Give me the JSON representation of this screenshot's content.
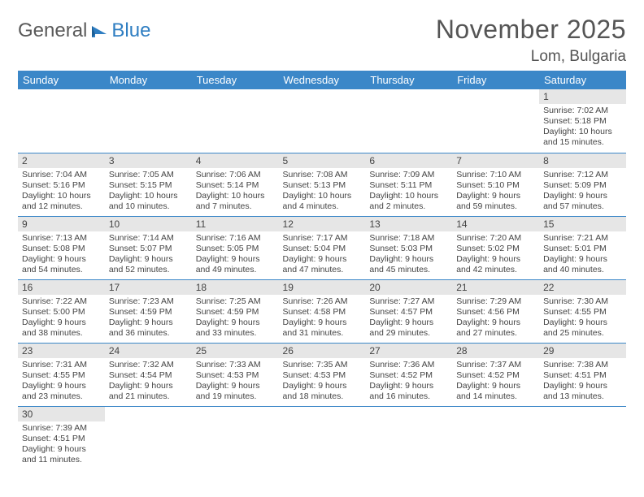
{
  "logo": {
    "general": "General",
    "blue": "Blue"
  },
  "title": "November 2025",
  "location": "Lom, Bulgaria",
  "colors": {
    "header_bg": "#3b87c8",
    "header_text": "#ffffff",
    "daynum_bg": "#e6e6e6",
    "border": "#3b87c8",
    "text": "#444444",
    "logo_gray": "#5a5a5a",
    "logo_blue": "#2f7ec2"
  },
  "day_headers": [
    "Sunday",
    "Monday",
    "Tuesday",
    "Wednesday",
    "Thursday",
    "Friday",
    "Saturday"
  ],
  "weeks": [
    [
      null,
      null,
      null,
      null,
      null,
      null,
      {
        "n": "1",
        "sr": "Sunrise: 7:02 AM",
        "ss": "Sunset: 5:18 PM",
        "dl": "Daylight: 10 hours and 15 minutes."
      }
    ],
    [
      {
        "n": "2",
        "sr": "Sunrise: 7:04 AM",
        "ss": "Sunset: 5:16 PM",
        "dl": "Daylight: 10 hours and 12 minutes."
      },
      {
        "n": "3",
        "sr": "Sunrise: 7:05 AM",
        "ss": "Sunset: 5:15 PM",
        "dl": "Daylight: 10 hours and 10 minutes."
      },
      {
        "n": "4",
        "sr": "Sunrise: 7:06 AM",
        "ss": "Sunset: 5:14 PM",
        "dl": "Daylight: 10 hours and 7 minutes."
      },
      {
        "n": "5",
        "sr": "Sunrise: 7:08 AM",
        "ss": "Sunset: 5:13 PM",
        "dl": "Daylight: 10 hours and 4 minutes."
      },
      {
        "n": "6",
        "sr": "Sunrise: 7:09 AM",
        "ss": "Sunset: 5:11 PM",
        "dl": "Daylight: 10 hours and 2 minutes."
      },
      {
        "n": "7",
        "sr": "Sunrise: 7:10 AM",
        "ss": "Sunset: 5:10 PM",
        "dl": "Daylight: 9 hours and 59 minutes."
      },
      {
        "n": "8",
        "sr": "Sunrise: 7:12 AM",
        "ss": "Sunset: 5:09 PM",
        "dl": "Daylight: 9 hours and 57 minutes."
      }
    ],
    [
      {
        "n": "9",
        "sr": "Sunrise: 7:13 AM",
        "ss": "Sunset: 5:08 PM",
        "dl": "Daylight: 9 hours and 54 minutes."
      },
      {
        "n": "10",
        "sr": "Sunrise: 7:14 AM",
        "ss": "Sunset: 5:07 PM",
        "dl": "Daylight: 9 hours and 52 minutes."
      },
      {
        "n": "11",
        "sr": "Sunrise: 7:16 AM",
        "ss": "Sunset: 5:05 PM",
        "dl": "Daylight: 9 hours and 49 minutes."
      },
      {
        "n": "12",
        "sr": "Sunrise: 7:17 AM",
        "ss": "Sunset: 5:04 PM",
        "dl": "Daylight: 9 hours and 47 minutes."
      },
      {
        "n": "13",
        "sr": "Sunrise: 7:18 AM",
        "ss": "Sunset: 5:03 PM",
        "dl": "Daylight: 9 hours and 45 minutes."
      },
      {
        "n": "14",
        "sr": "Sunrise: 7:20 AM",
        "ss": "Sunset: 5:02 PM",
        "dl": "Daylight: 9 hours and 42 minutes."
      },
      {
        "n": "15",
        "sr": "Sunrise: 7:21 AM",
        "ss": "Sunset: 5:01 PM",
        "dl": "Daylight: 9 hours and 40 minutes."
      }
    ],
    [
      {
        "n": "16",
        "sr": "Sunrise: 7:22 AM",
        "ss": "Sunset: 5:00 PM",
        "dl": "Daylight: 9 hours and 38 minutes."
      },
      {
        "n": "17",
        "sr": "Sunrise: 7:23 AM",
        "ss": "Sunset: 4:59 PM",
        "dl": "Daylight: 9 hours and 36 minutes."
      },
      {
        "n": "18",
        "sr": "Sunrise: 7:25 AM",
        "ss": "Sunset: 4:59 PM",
        "dl": "Daylight: 9 hours and 33 minutes."
      },
      {
        "n": "19",
        "sr": "Sunrise: 7:26 AM",
        "ss": "Sunset: 4:58 PM",
        "dl": "Daylight: 9 hours and 31 minutes."
      },
      {
        "n": "20",
        "sr": "Sunrise: 7:27 AM",
        "ss": "Sunset: 4:57 PM",
        "dl": "Daylight: 9 hours and 29 minutes."
      },
      {
        "n": "21",
        "sr": "Sunrise: 7:29 AM",
        "ss": "Sunset: 4:56 PM",
        "dl": "Daylight: 9 hours and 27 minutes."
      },
      {
        "n": "22",
        "sr": "Sunrise: 7:30 AM",
        "ss": "Sunset: 4:55 PM",
        "dl": "Daylight: 9 hours and 25 minutes."
      }
    ],
    [
      {
        "n": "23",
        "sr": "Sunrise: 7:31 AM",
        "ss": "Sunset: 4:55 PM",
        "dl": "Daylight: 9 hours and 23 minutes."
      },
      {
        "n": "24",
        "sr": "Sunrise: 7:32 AM",
        "ss": "Sunset: 4:54 PM",
        "dl": "Daylight: 9 hours and 21 minutes."
      },
      {
        "n": "25",
        "sr": "Sunrise: 7:33 AM",
        "ss": "Sunset: 4:53 PM",
        "dl": "Daylight: 9 hours and 19 minutes."
      },
      {
        "n": "26",
        "sr": "Sunrise: 7:35 AM",
        "ss": "Sunset: 4:53 PM",
        "dl": "Daylight: 9 hours and 18 minutes."
      },
      {
        "n": "27",
        "sr": "Sunrise: 7:36 AM",
        "ss": "Sunset: 4:52 PM",
        "dl": "Daylight: 9 hours and 16 minutes."
      },
      {
        "n": "28",
        "sr": "Sunrise: 7:37 AM",
        "ss": "Sunset: 4:52 PM",
        "dl": "Daylight: 9 hours and 14 minutes."
      },
      {
        "n": "29",
        "sr": "Sunrise: 7:38 AM",
        "ss": "Sunset: 4:51 PM",
        "dl": "Daylight: 9 hours and 13 minutes."
      }
    ],
    [
      {
        "n": "30",
        "sr": "Sunrise: 7:39 AM",
        "ss": "Sunset: 4:51 PM",
        "dl": "Daylight: 9 hours and 11 minutes."
      },
      null,
      null,
      null,
      null,
      null,
      null
    ]
  ]
}
